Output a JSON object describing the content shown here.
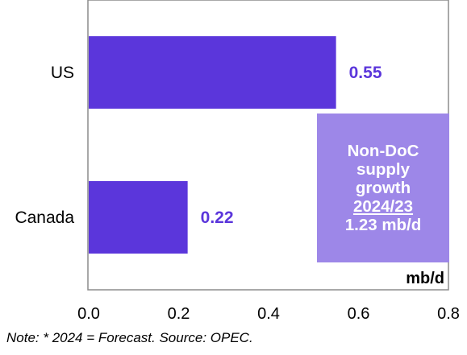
{
  "chart_data": {
    "type": "bar",
    "orientation": "horizontal",
    "categories": [
      "US",
      "Canada"
    ],
    "values": [
      0.55,
      0.22
    ],
    "value_labels": [
      "0.55",
      "0.22"
    ],
    "xlim": [
      0,
      0.8
    ],
    "x_ticks": [
      "0.0",
      "0.2",
      "0.4",
      "0.6",
      "0.8"
    ],
    "unit_label": "mb/d",
    "grid": false,
    "bar_color": "#5b36db",
    "value_label_color": "#5b36db"
  },
  "callout": {
    "lines": [
      "Non-DoC",
      "supply",
      "growth",
      "2024/23",
      "1.23 mb/d"
    ],
    "bg_color": "#9d87e8"
  },
  "note": "Note: * 2024 = Forecast. Source: OPEC."
}
